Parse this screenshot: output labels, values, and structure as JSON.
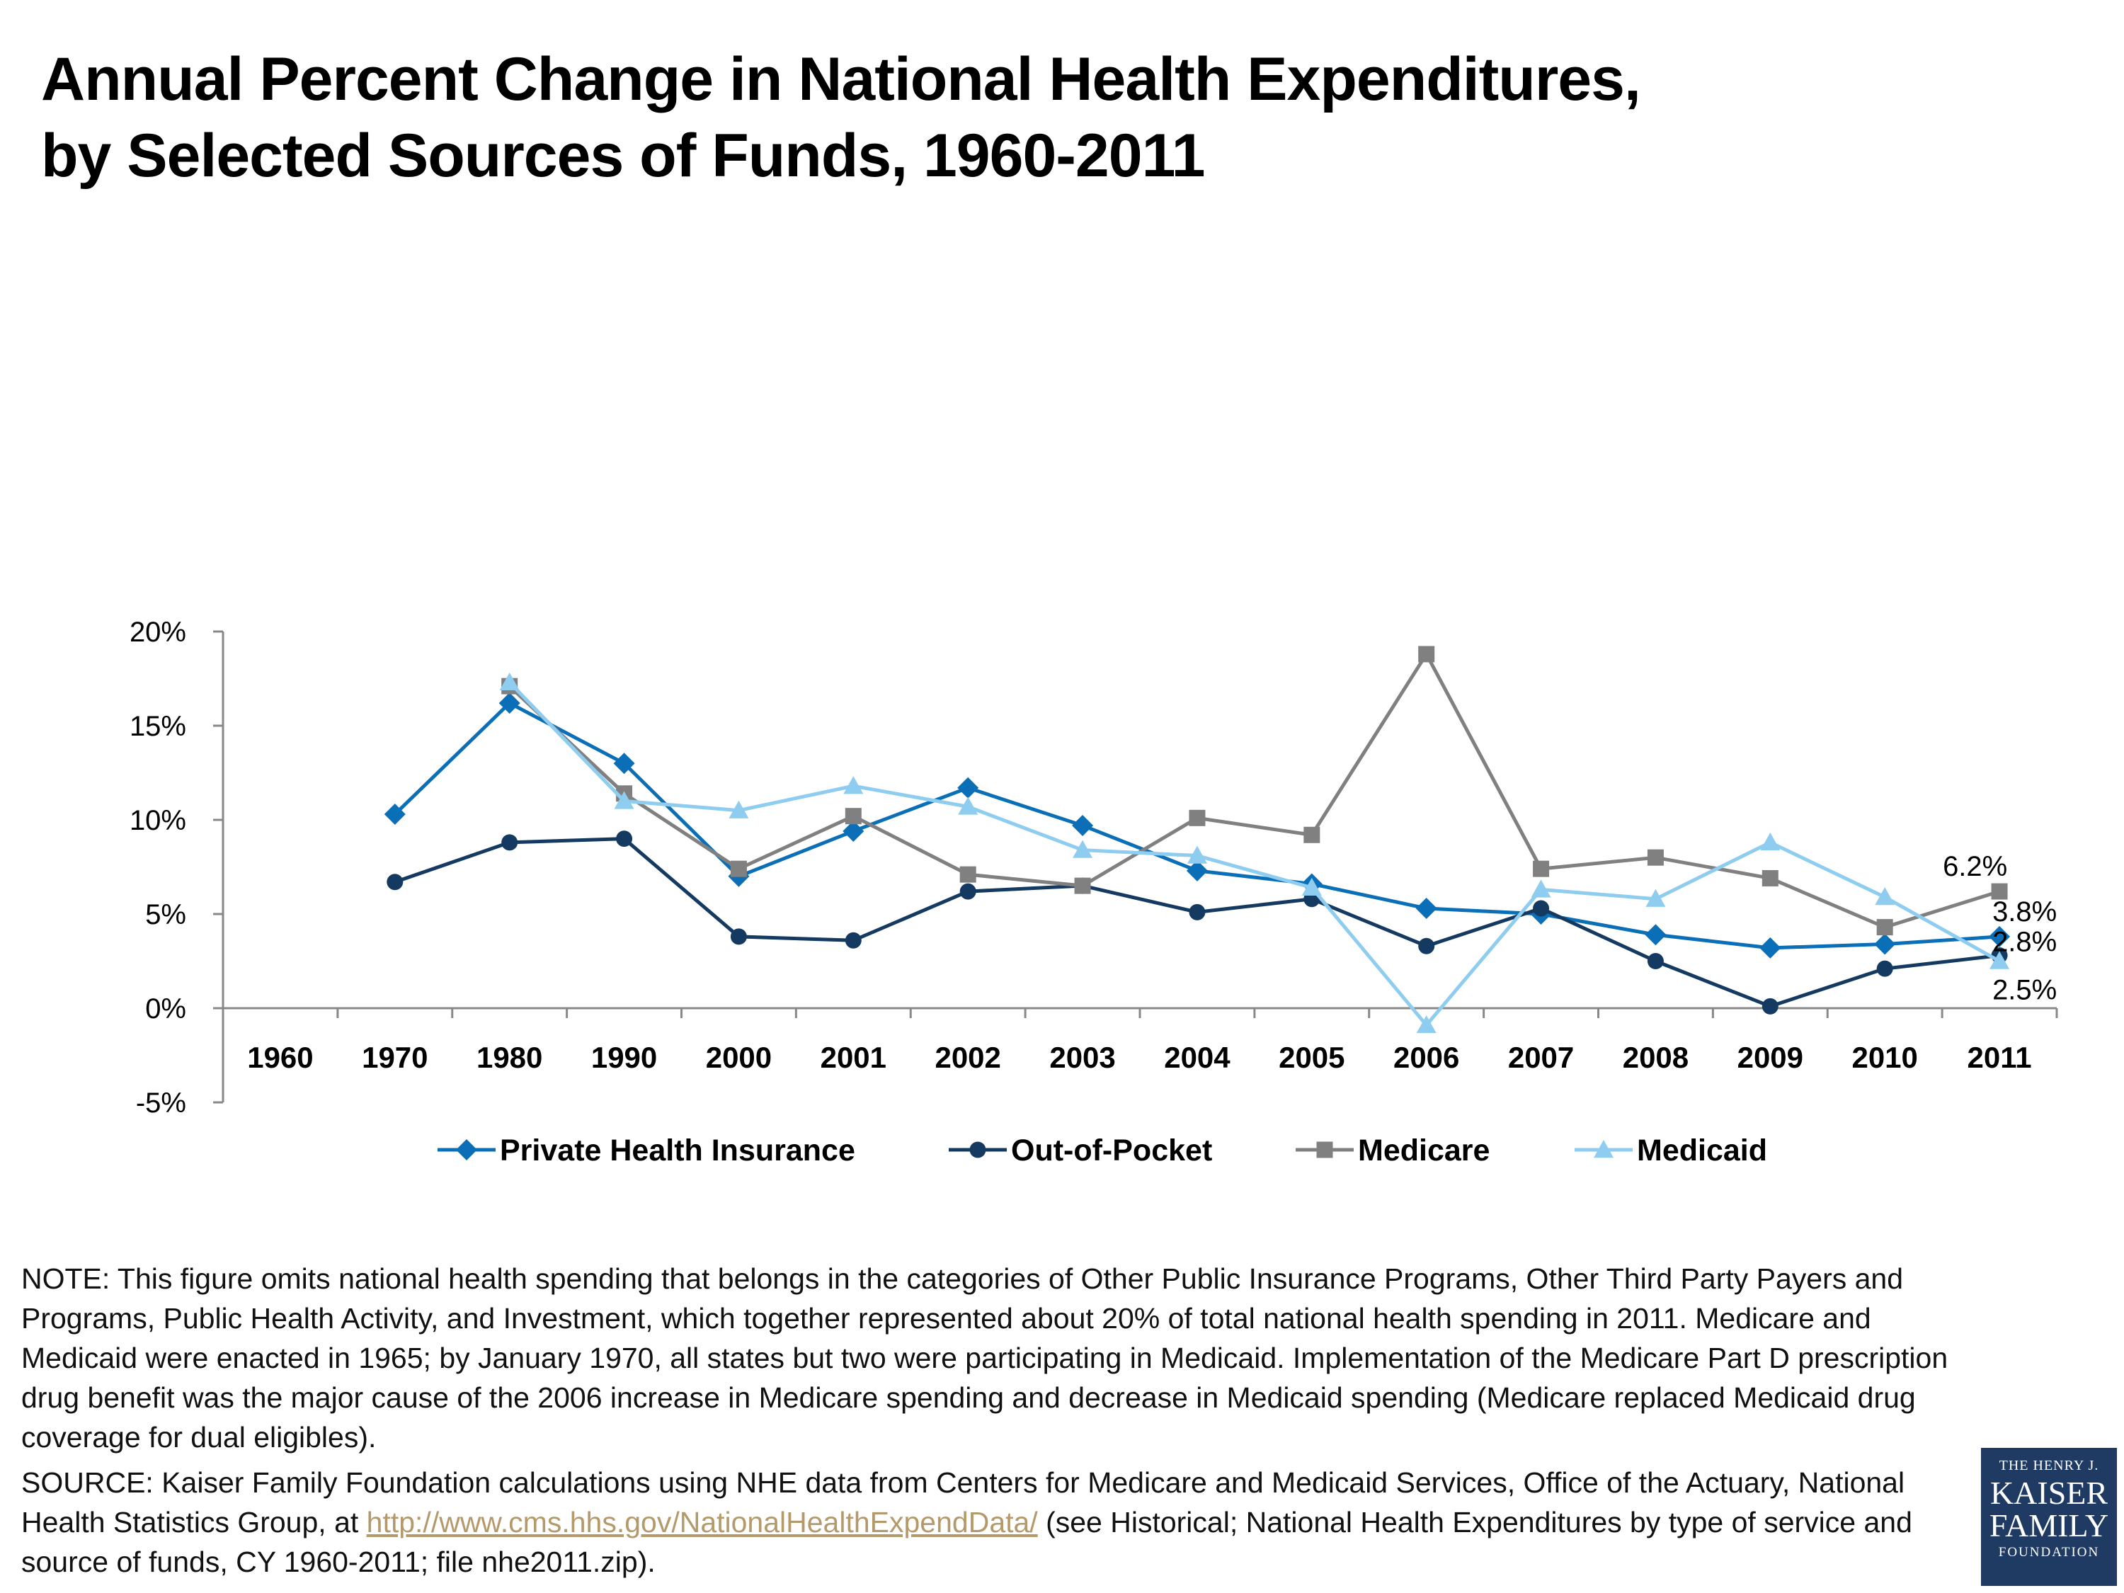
{
  "title": {
    "line1": "Annual Percent Change in National Health Expenditures,",
    "line2": "by Selected Sources of Funds, 1960-2011"
  },
  "chart_data": {
    "type": "line",
    "categories": [
      "1960",
      "1970",
      "1980",
      "1990",
      "2000",
      "2001",
      "2002",
      "2003",
      "2004",
      "2005",
      "2006",
      "2007",
      "2008",
      "2009",
      "2010",
      "2011"
    ],
    "y_ticks": [
      "-5%",
      "0%",
      "5%",
      "10%",
      "15%",
      "20%"
    ],
    "ylim": [
      -5,
      20
    ],
    "grid": false,
    "legend_position": "bottom",
    "series": [
      {
        "name": "Private Health Insurance",
        "color": "#0b6fb8",
        "marker": "diamond",
        "values": [
          null,
          10.3,
          16.2,
          13.0,
          7.0,
          9.4,
          11.7,
          9.7,
          7.3,
          6.6,
          5.3,
          5.0,
          3.9,
          3.2,
          3.4,
          3.8
        ]
      },
      {
        "name": "Out-of-Pocket",
        "color": "#143a62",
        "marker": "circle",
        "values": [
          null,
          6.7,
          8.8,
          9.0,
          3.8,
          3.6,
          6.2,
          6.5,
          5.1,
          5.8,
          3.3,
          5.3,
          2.5,
          0.1,
          2.1,
          2.8
        ]
      },
      {
        "name": "Medicare",
        "color": "#808080",
        "marker": "square",
        "values": [
          null,
          null,
          17.1,
          11.4,
          7.4,
          10.2,
          7.1,
          6.5,
          10.1,
          9.2,
          18.8,
          7.4,
          8.0,
          6.9,
          4.3,
          6.2
        ]
      },
      {
        "name": "Medicaid",
        "color": "#8ecdf0",
        "marker": "triangle",
        "values": [
          null,
          null,
          17.3,
          11.0,
          10.5,
          11.8,
          10.7,
          8.4,
          8.1,
          6.4,
          -0.9,
          6.3,
          5.8,
          8.8,
          5.9,
          2.5
        ]
      }
    ],
    "data_labels": [
      {
        "series": "Medicare",
        "category": "2011",
        "text": "6.2%"
      },
      {
        "series": "Private Health Insurance",
        "category": "2011",
        "text": "3.8%"
      },
      {
        "series": "Out-of-Pocket",
        "category": "2011",
        "text": "2.8%"
      },
      {
        "series": "Medicaid",
        "category": "2011",
        "text": "2.5%"
      }
    ]
  },
  "note": "NOTE: This figure omits national health spending that belongs in the categories of Other Public Insurance Programs, Other Third Party Payers and Programs, Public Health Activity, and Investment, which together represented about 20% of total national health spending in 2011. Medicare and Medicaid were enacted in 1965; by January 1970, all states but two were participating in Medicaid. Implementation of the Medicare Part D prescription drug benefit was the major cause of the 2006 increase in Medicare spending and decrease in Medicaid spending (Medicare replaced Medicaid drug coverage for dual eligibles).",
  "source": {
    "before": "SOURCE: Kaiser Family Foundation calculations using NHE data from Centers for Medicare and Medicaid Services, Office of the Actuary, National Health Statistics Group, at ",
    "link": "http://www.cms.hhs.gov/NationalHealthExpendData/",
    "after": " (see Historical; National Health Expenditures by type of service and source of funds, CY 1960-2011; file nhe2011.zip)."
  },
  "logo": {
    "line1": "THE HENRY J.",
    "line2": "KAISER",
    "line3": "FAMILY",
    "line4": "FOUNDATION"
  }
}
